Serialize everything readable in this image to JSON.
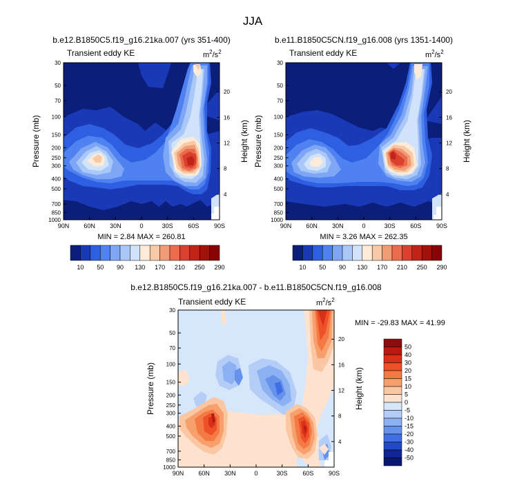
{
  "page": {
    "title": "JJA",
    "units_base": "m",
    "units_mid": "2",
    "units_slash": "/s",
    "units_sup": "2"
  },
  "chart_data": [
    {
      "type": "heatmap",
      "title": "b.e12.B1850C5.f19_g16.21ka.007 (yrs 351-400)",
      "subtitle": "Transient eddy KE",
      "xlabel": "",
      "ylabel": "Pressure (mb)",
      "ylabel_right": "Height (km)",
      "x_ticks": [
        "90N",
        "60N",
        "30N",
        "0",
        "30S",
        "60S",
        "90S"
      ],
      "p_ticks": [
        "30",
        "50",
        "70",
        "100",
        "150",
        "200",
        "250",
        "300",
        "400",
        "500",
        "700",
        "850",
        "1000"
      ],
      "h_ticks": [
        "20",
        "16",
        "12",
        "8",
        "4"
      ],
      "ylim_mb": [
        1000,
        30
      ],
      "min_max_text": "MIN =   2.84  MAX = 260.81",
      "colorbar": {
        "orientation": "horizontal",
        "labels": [
          "10",
          "50",
          "90",
          "130",
          "170",
          "210",
          "250",
          "290"
        ],
        "colors": [
          "#0b1f7a",
          "#1939b7",
          "#2e5fe0",
          "#4f82f0",
          "#7ea6f5",
          "#a9c8f8",
          "#d0e3fb",
          "#fdebd9",
          "#f8c9a6",
          "#f29c76",
          "#ea6c4d",
          "#d9412e",
          "#bf2417",
          "#a1120b",
          "#870505"
        ]
      },
      "features": [
        {
          "name": "Northern midlatitude jet maximum",
          "lat": 47,
          "p_mb": 250,
          "value": 190
        },
        {
          "name": "Southern midlatitude jet maximum",
          "lat": -52,
          "p_mb": 300,
          "value": 260.81
        }
      ]
    },
    {
      "type": "heatmap",
      "title": "b.e11.B1850C5CN.f19_g16.008 (yrs 1351-1400)",
      "subtitle": "Transient eddy KE",
      "xlabel": "",
      "ylabel": "Pressure (mb)",
      "ylabel_right": "Height (km)",
      "x_ticks": [
        "90N",
        "60N",
        "30N",
        "0",
        "30S",
        "60S",
        "90S"
      ],
      "p_ticks": [
        "30",
        "50",
        "70",
        "100",
        "150",
        "200",
        "250",
        "300",
        "400",
        "500",
        "700",
        "850",
        "1000"
      ],
      "h_ticks": [
        "20",
        "16",
        "12",
        "8",
        "4"
      ],
      "ylim_mb": [
        1000,
        30
      ],
      "min_max_text": "MIN =   3.26  MAX = 262.35",
      "colorbar": {
        "orientation": "horizontal",
        "labels": [
          "10",
          "50",
          "90",
          "130",
          "170",
          "210",
          "250",
          "290"
        ],
        "colors": [
          "#0b1f7a",
          "#1939b7",
          "#2e5fe0",
          "#4f82f0",
          "#7ea6f5",
          "#a9c8f8",
          "#d0e3fb",
          "#fdebd9",
          "#f8c9a6",
          "#f29c76",
          "#ea6c4d",
          "#d9412e",
          "#bf2417",
          "#a1120b",
          "#870505"
        ]
      },
      "features": [
        {
          "name": "Northern midlatitude jet maximum",
          "lat": 45,
          "p_mb": 250,
          "value": 170
        },
        {
          "name": "Southern midlatitude jet maximum",
          "lat": -42,
          "p_mb": 250,
          "value": 262.35
        }
      ]
    },
    {
      "type": "heatmap",
      "title": "b.e12.B1850C5.f19_g16.21ka.007 - b.e11.B1850C5CN.f19_g16.008",
      "subtitle": "Transient eddy KE",
      "xlabel": "",
      "ylabel": "Pressure (mb)",
      "ylabel_right": "Height (km)",
      "x_ticks": [
        "90N",
        "60N",
        "30N",
        "0",
        "30S",
        "60S",
        "90S"
      ],
      "p_ticks": [
        "30",
        "50",
        "70",
        "100",
        "150",
        "200",
        "250",
        "300",
        "400",
        "500",
        "700",
        "850",
        "1000"
      ],
      "h_ticks": [
        "20",
        "16",
        "12",
        "8",
        "4"
      ],
      "ylim_mb": [
        1000,
        30
      ],
      "min_max_text": "MIN = -29.83  MAX =  41.99",
      "colorbar": {
        "orientation": "vertical",
        "labels": [
          "50",
          "40",
          "30",
          "20",
          "15",
          "10",
          "5",
          "0",
          "-5",
          "-10",
          "-15",
          "-20",
          "-30",
          "-40",
          "-50"
        ],
        "colors": [
          "#8c0d0d",
          "#b81a12",
          "#d9301a",
          "#ec5128",
          "#f47a45",
          "#f8a06d",
          "#fbc6a2",
          "#fde3cf",
          "#d6e6fb",
          "#b3cdf7",
          "#8cb1f2",
          "#6792ec",
          "#3f70e3",
          "#2149c8",
          "#0f2596",
          "#081870"
        ]
      },
      "features": [
        {
          "name": "Northern midlatitude positive anomaly",
          "lat": 48,
          "p_mb": 330,
          "value": 30
        },
        {
          "name": "Southern midlatitude positive anomaly",
          "lat": -60,
          "p_mb": 450,
          "value": 41.99
        },
        {
          "name": "Southern polar stratosphere positive anomaly",
          "lat": -80,
          "p_mb": 40,
          "value": 35
        },
        {
          "name": "Tropical upper troposphere negative anomaly",
          "lat": 0,
          "p_mb": 140,
          "value": -25
        }
      ]
    }
  ]
}
